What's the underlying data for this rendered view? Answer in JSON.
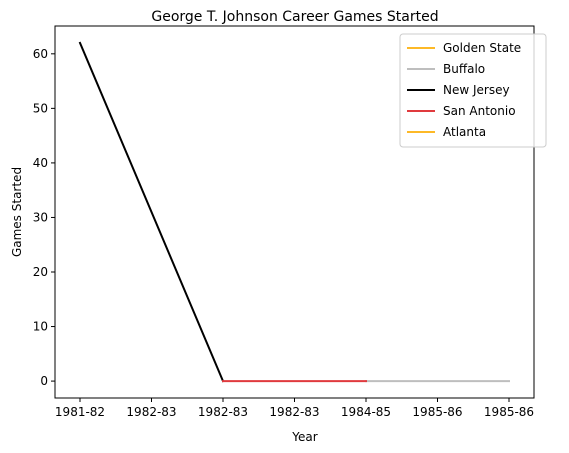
{
  "chart_data": {
    "type": "line",
    "title": "George T. Johnson Career Games Started",
    "xlabel": "Year",
    "ylabel": "Games Started",
    "x_categories": [
      "1981-82",
      "1982-83",
      "1982-83",
      "1982-83",
      "1984-85",
      "1985-86",
      "1985-86"
    ],
    "yticks": [
      0,
      10,
      20,
      30,
      40,
      50,
      60
    ],
    "ylim": [
      -3.1,
      65.1
    ],
    "legend_position": "top-right",
    "grid": false,
    "series": [
      {
        "name": "Golden State",
        "color": "#FDB927",
        "points": []
      },
      {
        "name": "Buffalo",
        "color": "#BEBEBE",
        "points": [
          [
            4,
            0
          ],
          [
            6,
            0
          ]
        ]
      },
      {
        "name": "New Jersey",
        "color": "#000000",
        "points": [
          [
            0,
            62
          ],
          [
            2,
            0
          ]
        ]
      },
      {
        "name": "San Antonio",
        "color": "#E03A3E",
        "points": [
          [
            2,
            0
          ],
          [
            4,
            0
          ]
        ]
      },
      {
        "name": "Atlanta",
        "color": "#FDB927",
        "points": []
      }
    ]
  }
}
